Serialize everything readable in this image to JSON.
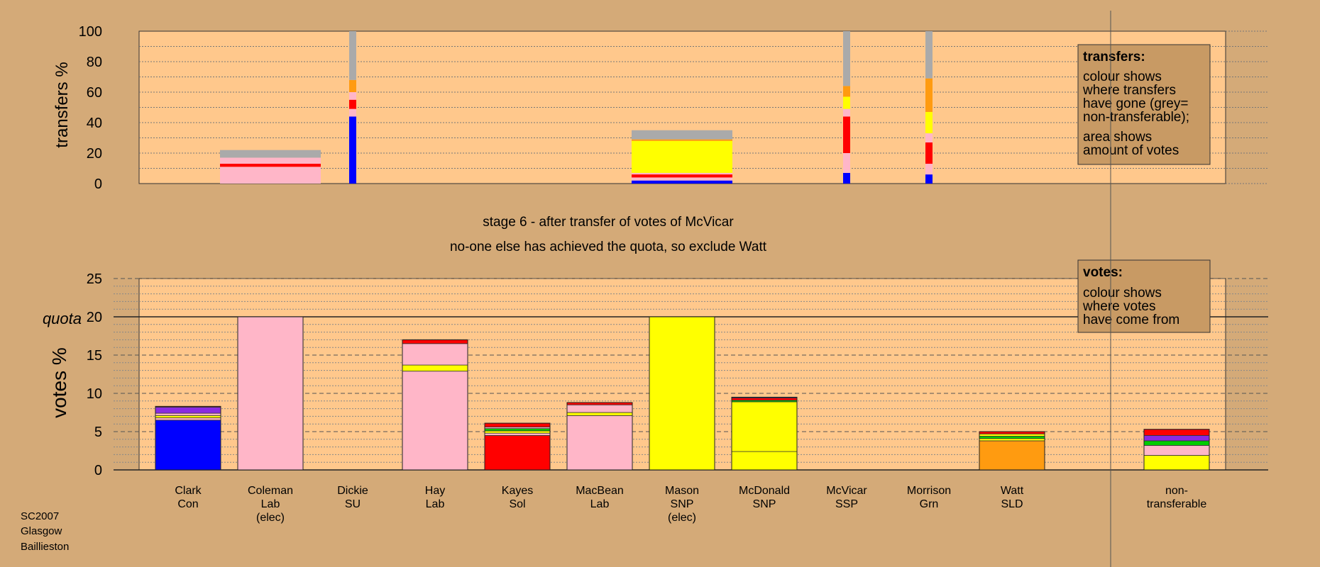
{
  "footer": {
    "line1": "SC2007",
    "line2": "Glasgow",
    "line3": "Baillieston"
  },
  "stage": {
    "line1": "stage 6 - after transfer of votes of McVicar",
    "line2": "no-one else has achieved the quota, so exclude Watt"
  },
  "colors": {
    "background": "#d4aa78",
    "plot_bg": "#ffc88c",
    "legend_bg": "#c89a64",
    "Con": "#0000ff",
    "Lab": "#ffb6c8",
    "Sol": "#ff0000",
    "SNP": "#ffff00",
    "SSP": "#ff0000",
    "SLD": "#ff9b10",
    "Other": "#8a2be2",
    "Grn": "#00cc00",
    "nontransferable": "#aaaaaa"
  },
  "chart_data": [
    {
      "type": "bar",
      "name": "transfers",
      "ylabel": "transfers %",
      "ylim": [
        0,
        100
      ],
      "yticks": [
        0,
        20,
        40,
        60,
        80,
        100
      ],
      "grid": true,
      "legend": {
        "placement": "top-right",
        "title": "transfers:",
        "lines": [
          "colour shows",
          "where transfers",
          "have gone (grey=",
          "non-transferable);",
          "area shows",
          "amount of votes"
        ]
      },
      "transfers": [
        {
          "candidate": "Coleman",
          "width": "wide",
          "segments": [
            {
              "to": "Coleman",
              "party": "Lab",
              "value": 11
            },
            {
              "to": "Kayes",
              "party": "Sol",
              "value": 2
            },
            {
              "to": "Hay",
              "party": "Lab",
              "value": 4
            },
            {
              "to": "non-transferable",
              "party": "nontransferable",
              "value": 5
            }
          ]
        },
        {
          "candidate": "Dickie",
          "width": "narrow",
          "segments": [
            {
              "to": "Clark",
              "party": "Con",
              "value": 44
            },
            {
              "to": "Hay",
              "party": "Lab",
              "value": 5
            },
            {
              "to": "Kayes",
              "party": "Sol",
              "value": 6
            },
            {
              "to": "MacBean",
              "party": "Lab",
              "value": 5
            },
            {
              "to": "Watt",
              "party": "SLD",
              "value": 8
            },
            {
              "to": "non-transferable",
              "party": "nontransferable",
              "value": 32
            }
          ]
        },
        {
          "candidate": "Mason",
          "width": "wide",
          "segments": [
            {
              "to": "Clark",
              "party": "Con",
              "value": 2
            },
            {
              "to": "Hay",
              "party": "Lab",
              "value": 2
            },
            {
              "to": "Kayes",
              "party": "Sol",
              "value": 2
            },
            {
              "to": "MacBean",
              "party": "Lab",
              "value": 1
            },
            {
              "to": "McDonald",
              "party": "SNP",
              "value": 21
            },
            {
              "to": "Watt",
              "party": "SLD",
              "value": 1
            },
            {
              "to": "non-transferable",
              "party": "nontransferable",
              "value": 6
            }
          ]
        },
        {
          "candidate": "McVicar",
          "width": "narrow",
          "segments": [
            {
              "to": "Clark",
              "party": "Con",
              "value": 7
            },
            {
              "to": "Hay",
              "party": "Lab",
              "value": 13
            },
            {
              "to": "Kayes",
              "party": "Sol",
              "value": 24
            },
            {
              "to": "MacBean",
              "party": "Lab",
              "value": 5
            },
            {
              "to": "McDonald",
              "party": "SNP",
              "value": 8
            },
            {
              "to": "Watt",
              "party": "SLD",
              "value": 7
            },
            {
              "to": "non-transferable",
              "party": "nontransferable",
              "value": 36
            }
          ]
        },
        {
          "candidate": "Morrison",
          "width": "narrow",
          "segments": [
            {
              "to": "Clark",
              "party": "Con",
              "value": 6
            },
            {
              "to": "Hay",
              "party": "Lab",
              "value": 7
            },
            {
              "to": "Kayes",
              "party": "Sol",
              "value": 14
            },
            {
              "to": "MacBean",
              "party": "Lab",
              "value": 6
            },
            {
              "to": "McDonald",
              "party": "SNP",
              "value": 14
            },
            {
              "to": "Watt",
              "party": "SLD",
              "value": 22
            },
            {
              "to": "non-transferable",
              "party": "nontransferable",
              "value": 31
            }
          ]
        }
      ]
    },
    {
      "type": "bar",
      "name": "votes",
      "ylabel": "votes %",
      "ylim": [
        0,
        25
      ],
      "yticks": [
        0,
        5,
        10,
        15,
        20,
        25
      ],
      "quota": 20,
      "quota_label": "quota",
      "grid": true,
      "legend": {
        "placement": "top-right",
        "title": "votes:",
        "lines": [
          "colour shows",
          "where votes",
          "have come from"
        ]
      },
      "categories": [
        {
          "name": "Clark",
          "party": "Con",
          "note": ""
        },
        {
          "name": "Coleman",
          "party": "Lab",
          "note": "(elec)"
        },
        {
          "name": "Dickie",
          "party": "SU",
          "note": ""
        },
        {
          "name": "Hay",
          "party": "Lab",
          "note": ""
        },
        {
          "name": "Kayes",
          "party": "Sol",
          "note": ""
        },
        {
          "name": "MacBean",
          "party": "Lab",
          "note": ""
        },
        {
          "name": "Mason",
          "party": "SNP",
          "note": "(elec)"
        },
        {
          "name": "McDonald",
          "party": "SNP",
          "note": ""
        },
        {
          "name": "McVicar",
          "party": "SSP",
          "note": ""
        },
        {
          "name": "Morrison",
          "party": "Grn",
          "note": ""
        },
        {
          "name": "Watt",
          "party": "SLD",
          "note": ""
        }
      ],
      "nontransferable_label": [
        "non-",
        "transferable"
      ],
      "stacks": [
        [
          {
            "from": "Con",
            "value": 6.5
          },
          {
            "from": "Lab",
            "value": 0.3
          },
          {
            "from": "SNP",
            "value": 0.3
          },
          {
            "from": "Lab",
            "value": 0.3
          },
          {
            "from": "Other",
            "value": 0.8
          },
          {
            "from": "Sol",
            "value": 0.1
          }
        ],
        [
          {
            "from": "Lab",
            "value": 20
          }
        ],
        [],
        [
          {
            "from": "Lab",
            "value": 12.9
          },
          {
            "from": "SNP",
            "value": 0.8
          },
          {
            "from": "Lab",
            "value": 2.8
          },
          {
            "from": "Sol",
            "value": 0.5
          }
        ],
        [
          {
            "from": "Sol",
            "value": 4.5
          },
          {
            "from": "Lab",
            "value": 0.3
          },
          {
            "from": "SNP",
            "value": 0.3
          },
          {
            "from": "Grn",
            "value": 0.3
          },
          {
            "from": "Lab",
            "value": 0.2
          },
          {
            "from": "Sol",
            "value": 0.5
          }
        ],
        [
          {
            "from": "Lab",
            "value": 7.1
          },
          {
            "from": "SNP",
            "value": 0.4
          },
          {
            "from": "Lab",
            "value": 1.0
          },
          {
            "from": "Sol",
            "value": 0.3
          }
        ],
        [
          {
            "from": "SNP",
            "value": 20
          }
        ],
        [
          {
            "from": "SNP",
            "value": 2.4
          },
          {
            "from": "SNP",
            "value": 6.5
          },
          {
            "from": "Grn",
            "value": 0.2
          },
          {
            "from": "Sol",
            "value": 0.3
          },
          {
            "from": "Con",
            "value": 0.1
          }
        ],
        [],
        [],
        [
          {
            "from": "SLD",
            "value": 3.8
          },
          {
            "from": "SNP",
            "value": 0.3
          },
          {
            "from": "Grn",
            "value": 0.3
          },
          {
            "from": "SNP",
            "value": 0.3
          },
          {
            "from": "Sol",
            "value": 0.3
          }
        ]
      ],
      "nontransferable": [
        {
          "from": "SNP",
          "value": 1.9
        },
        {
          "from": "Lab",
          "value": 1.3
        },
        {
          "from": "Grn",
          "value": 0.6
        },
        {
          "from": "Other",
          "value": 0.7
        },
        {
          "from": "Sol",
          "value": 0.8
        }
      ]
    }
  ]
}
